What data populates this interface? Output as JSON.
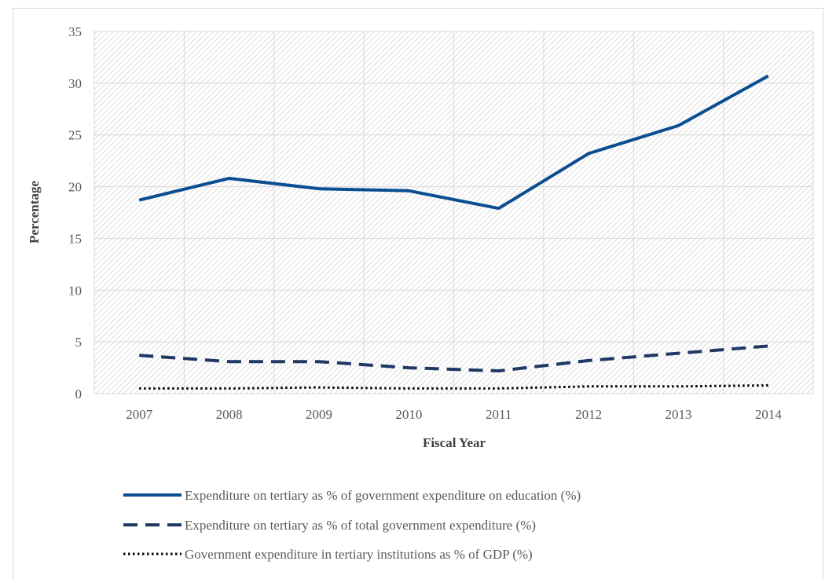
{
  "chart_data": {
    "type": "line",
    "title": "",
    "xlabel": "Fiscal Year",
    "ylabel": "Percentage",
    "categories": [
      "2007",
      "2008",
      "2009",
      "2010",
      "2011",
      "2012",
      "2013",
      "2014"
    ],
    "ylim": [
      0,
      35
    ],
    "yticks": [
      0,
      5,
      10,
      15,
      20,
      25,
      30,
      35
    ],
    "grid": true,
    "legend_position": "bottom",
    "series": [
      {
        "name": "Expenditure on tertiary as % of government expenditure on education (%)",
        "values": [
          18.7,
          20.8,
          19.8,
          19.6,
          17.9,
          23.2,
          25.9,
          30.7
        ],
        "color": "#0b4d91",
        "style": "solid"
      },
      {
        "name": "Expenditure on tertiary as % of total government expenditure (%)",
        "values": [
          3.7,
          3.1,
          3.1,
          2.5,
          2.2,
          3.2,
          3.9,
          4.6
        ],
        "color": "#1f3864",
        "style": "dashed"
      },
      {
        "name": "Government expenditure in tertiary institutions as % of GDP (%)",
        "values": [
          0.5,
          0.5,
          0.6,
          0.5,
          0.5,
          0.7,
          0.7,
          0.8
        ],
        "color": "#000000",
        "style": "dotted"
      }
    ]
  }
}
